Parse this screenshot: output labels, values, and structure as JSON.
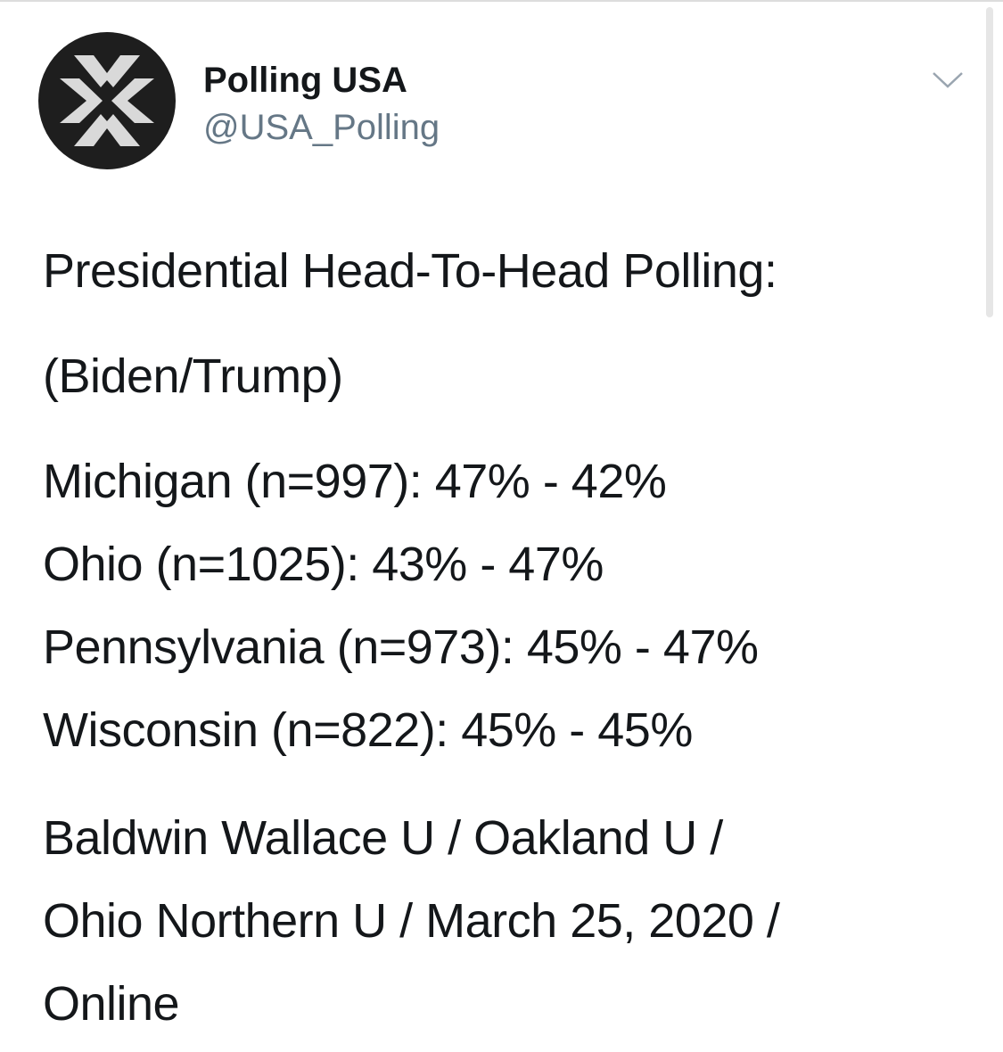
{
  "author": {
    "name": "Polling USA",
    "handle": "@USA_Polling"
  },
  "tweet": {
    "heading": "Presidential Head-To-Head Polling:",
    "subheading": "(Biden/Trump)",
    "results": [
      "Michigan (n=997): 47% - 42%",
      "Ohio (n=1025): 43% - 47%",
      "Pennsylvania (n=973): 45% - 47%",
      "Wisconsin (n=822): 45% - 45%"
    ],
    "source": [
      "Baldwin Wallace U / Oakland U /",
      "Ohio Northern U / March 25, 2020 /",
      "Online"
    ]
  }
}
